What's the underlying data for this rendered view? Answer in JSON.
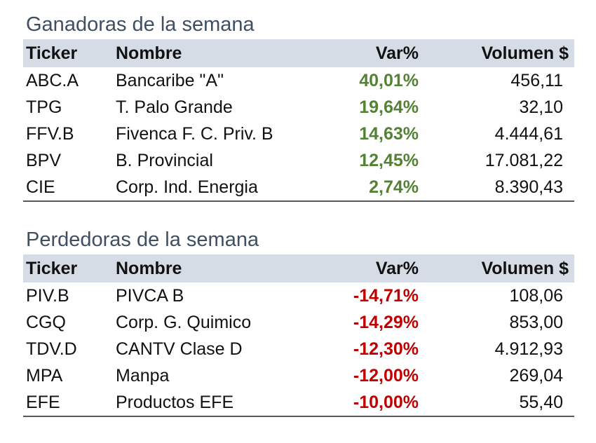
{
  "gainers": {
    "title": "Ganadoras de la semana",
    "headers": {
      "ticker": "Ticker",
      "name": "Nombre",
      "var": "Var%",
      "volume": "Volumen $"
    },
    "rows": [
      {
        "ticker": "ABC.A",
        "name": "Bancaribe \"A\"",
        "var": "40,01%",
        "volume": "456,11"
      },
      {
        "ticker": "TPG",
        "name": "T. Palo Grande",
        "var": "19,64%",
        "volume": "32,10"
      },
      {
        "ticker": "FFV.B",
        "name": "Fivenca F. C. Priv. B",
        "var": "14,63%",
        "volume": "4.444,61"
      },
      {
        "ticker": "BPV",
        "name": "B. Provincial",
        "var": "12,45%",
        "volume": "17.081,22"
      },
      {
        "ticker": "CIE",
        "name": "Corp. Ind. Energia",
        "var": "2,74%",
        "volume": "8.390,43"
      }
    ]
  },
  "losers": {
    "title": "Perdedoras de la semana",
    "headers": {
      "ticker": "Ticker",
      "name": "Nombre",
      "var": "Var%",
      "volume": "Volumen $"
    },
    "rows": [
      {
        "ticker": "PIV.B",
        "name": "PIVCA B",
        "var": "-14,71%",
        "volume": "108,06"
      },
      {
        "ticker": "CGQ",
        "name": "Corp. G. Quimico",
        "var": "-14,29%",
        "volume": "853,00"
      },
      {
        "ticker": "TDV.D",
        "name": "CANTV Clase D",
        "var": "-12,30%",
        "volume": "4.912,93"
      },
      {
        "ticker": "MPA",
        "name": "Manpa",
        "var": "-12,00%",
        "volume": "269,04"
      },
      {
        "ticker": "EFE",
        "name": "Productos EFE",
        "var": "-10,00%",
        "volume": "55,40"
      }
    ]
  },
  "colors": {
    "title": "#3f4f61",
    "header_bg": "#d6dce5",
    "positive": "#548235",
    "negative": "#c00000",
    "rule": "#595959"
  }
}
